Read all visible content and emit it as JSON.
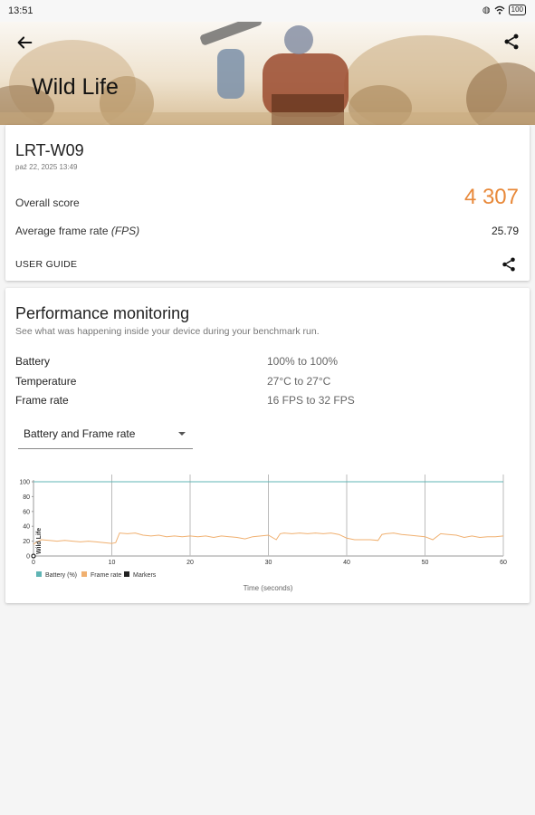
{
  "status_bar": {
    "time": "13:51",
    "battery": "100"
  },
  "header": {
    "title": "Wild Life"
  },
  "result": {
    "device": "LRT-W09",
    "date": "paź 22, 2025 13:49",
    "overall_label": "Overall score",
    "overall_value": "4 307",
    "fps_label": "Average frame rate",
    "fps_label_unit": "(FPS)",
    "fps_value": "25.79",
    "guide_label": "USER GUIDE"
  },
  "monitoring": {
    "title": "Performance monitoring",
    "subtitle": "See what was happening inside your device during your benchmark run.",
    "stats": [
      {
        "label": "Battery",
        "value": "100% to 100%"
      },
      {
        "label": "Temperature",
        "value": "27°C to 27°C"
      },
      {
        "label": "Frame rate",
        "value": "16 FPS to 32 FPS"
      }
    ],
    "dropdown_value": "Battery and Frame rate"
  },
  "colors": {
    "accent": "#e8893a",
    "battery": "#5fb4b4",
    "framerate": "#f0b070",
    "markers": "#222222"
  },
  "chart_data": {
    "type": "line",
    "ylabel": "Wild Life",
    "xlabel": "Time (seconds)",
    "xlim": [
      0,
      60
    ],
    "ylim": [
      0,
      100
    ],
    "x_ticks": [
      "0",
      "10",
      "20",
      "30",
      "40",
      "50",
      "60"
    ],
    "y_ticks": [
      "0",
      "20",
      "40",
      "60",
      "80",
      "100"
    ],
    "markers_x": [
      10,
      20,
      30,
      40,
      50,
      60
    ],
    "legend": [
      "Battery (%)",
      "Frame rate",
      "Markers"
    ],
    "series": [
      {
        "name": "Battery (%)",
        "x": [
          0,
          60
        ],
        "y": [
          100,
          100
        ]
      },
      {
        "name": "Frame rate",
        "x": [
          0,
          1,
          2,
          3,
          4,
          5,
          6,
          7,
          8,
          9,
          10,
          10.5,
          11,
          12,
          13,
          14,
          15,
          16,
          17,
          18,
          19,
          20,
          21,
          22,
          23,
          24,
          25,
          26,
          27,
          28,
          29,
          30,
          31,
          31.5,
          32,
          33,
          34,
          35,
          36,
          37,
          38,
          39,
          40,
          41,
          42,
          43,
          44,
          44.5,
          45,
          46,
          47,
          48,
          49,
          50,
          51,
          52,
          53,
          54,
          55,
          56,
          57,
          58,
          59,
          60
        ],
        "y": [
          16,
          22,
          21,
          20,
          21,
          20,
          19,
          20,
          19,
          18,
          17,
          18,
          31,
          30,
          31,
          28,
          27,
          28,
          26,
          27,
          26,
          27,
          26,
          27,
          25,
          27,
          26,
          25,
          23,
          26,
          27,
          28,
          22,
          30,
          31,
          30,
          31,
          30,
          31,
          30,
          31,
          29,
          24,
          22,
          22,
          22,
          21,
          29,
          30,
          31,
          29,
          28,
          27,
          26,
          22,
          30,
          29,
          28,
          25,
          27,
          25,
          26,
          26,
          27
        ]
      }
    ]
  }
}
